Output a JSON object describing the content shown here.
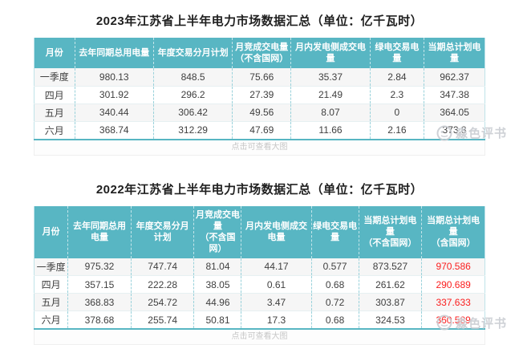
{
  "colors": {
    "header_teal": "#58b6c3",
    "grid_teal": "#9ad2db",
    "red_value": "#fb1e1e",
    "body_text": "#3f3f3f",
    "title_text": "#1f1f1f",
    "caption_gray": "#c7c7c7",
    "watermark_gray": "#c9cdd2"
  },
  "watermark": {
    "text": "淼色评书",
    "logo": "circle-mascot-logo"
  },
  "tables": [
    {
      "title": "2023年江苏省上半年电力市场数据汇总（单位：亿千瓦时）",
      "caption": "点击可查看大图",
      "highlight_last_column": false,
      "headers": [
        "月份",
        "去年同期总用电量",
        "年度交易分月计划",
        "月竞成交电量\n（不含国网）",
        "月内发电侧成交电量",
        "绿电交易电量",
        "当期总计划电量"
      ],
      "rows": [
        [
          "一季度",
          "980.13",
          "848.5",
          "75.66",
          "35.37",
          "2.84",
          "962.37"
        ],
        [
          "四月",
          "301.92",
          "296.2",
          "27.39",
          "21.49",
          "2.3",
          "347.38"
        ],
        [
          "五月",
          "340.44",
          "306.42",
          "49.56",
          "8.07",
          "0",
          "364.05"
        ],
        [
          "六月",
          "368.74",
          "312.29",
          "47.69",
          "11.66",
          "2.16",
          "373.8"
        ]
      ]
    },
    {
      "title": "2022年江苏省上半年电力市场数据汇总（单位：亿千瓦时）",
      "caption": "点击可查看大图",
      "highlight_last_column": true,
      "headers": [
        "月份",
        "去年同期总用电量",
        "年度交易分月计划",
        "月竞成交电量\n（不含国网）",
        "月内发电侧成交电量",
        "绿电交易电量",
        "当期总计划电量\n（不含国网）",
        "当期总计划电量\n（含国网）"
      ],
      "rows": [
        [
          "一季度",
          "975.32",
          "747.74",
          "81.04",
          "44.17",
          "0.577",
          "873.527",
          "970.586"
        ],
        [
          "四月",
          "357.15",
          "222.28",
          "38.05",
          "0.61",
          "0.68",
          "261.62",
          "290.689"
        ],
        [
          "五月",
          "368.83",
          "254.72",
          "44.96",
          "3.47",
          "0.72",
          "303.87",
          "337.633"
        ],
        [
          "六月",
          "378.68",
          "255.74",
          "50.81",
          "17.3",
          "0.68",
          "324.53",
          "360.589"
        ]
      ]
    }
  ]
}
